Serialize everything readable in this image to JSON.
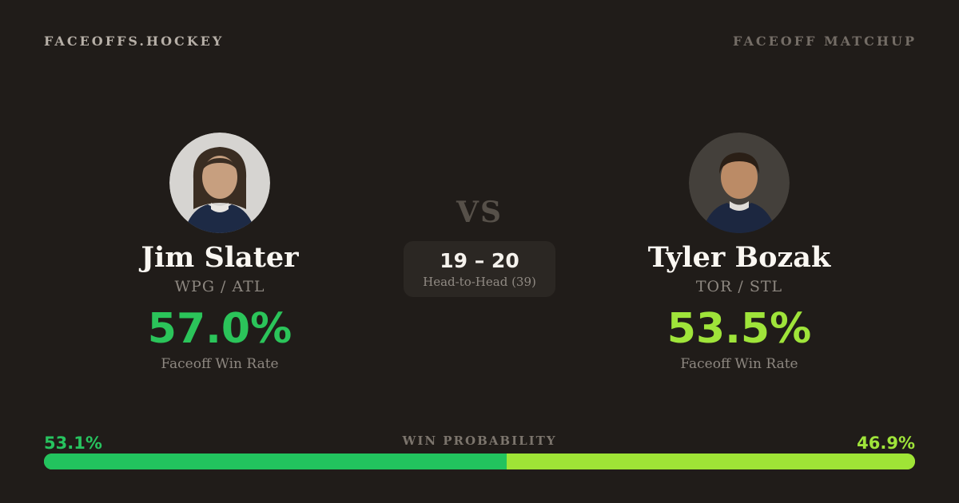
{
  "page": {
    "background": "#201c19"
  },
  "header": {
    "brand": "FACEOFFS.HOCKEY",
    "matchup_label": "FACEOFF MATCHUP"
  },
  "players": {
    "left": {
      "name": "Jim Slater",
      "teams": "WPG / ATL",
      "win_rate": "57.0%",
      "win_rate_label": "Faceoff Win Rate",
      "accent_color": "#2bc45a",
      "photo": "player-headshot-light-background"
    },
    "right": {
      "name": "Tyler Bozak",
      "teams": "TOR / STL",
      "win_rate": "53.5%",
      "win_rate_label": "Faceoff Win Rate",
      "accent_color": "#9fe43a",
      "photo": "player-headshot-dark-background"
    }
  },
  "matchup": {
    "vs": "VS",
    "head_to_head_score": "19 – 20",
    "head_to_head_label": "Head-to-Head (39)"
  },
  "win_probability": {
    "title": "WIN PROBABILITY",
    "left_pct_label": "53.1%",
    "right_pct_label": "46.9%",
    "left_value": 53.1,
    "right_value": 46.9,
    "left_color": "#22c35e",
    "right_color": "#9fe436"
  }
}
